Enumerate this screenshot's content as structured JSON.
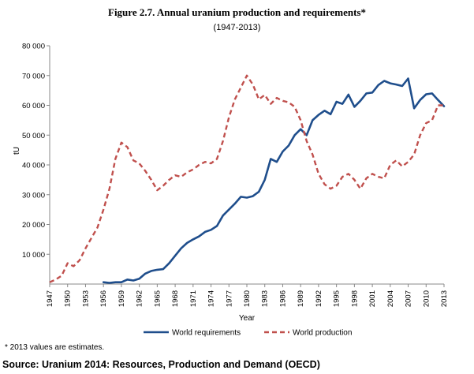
{
  "figure": {
    "title": "Figure 2.7. Annual uranium production and requirements*",
    "subtitle": "(1947-2013)",
    "footnote": "* 2013 values are estimates.",
    "source": "Source: Uranium 2014: Resources, Production and Demand (OECD)"
  },
  "chart_data": {
    "type": "line",
    "title": "Figure 2.7. Annual uranium production and requirements*",
    "subtitle": "(1947-2013)",
    "xlabel": "Year",
    "ylabel": "tU",
    "xlim": [
      1947,
      2013
    ],
    "ylim": [
      0,
      80000
    ],
    "x_ticks": [
      "1947",
      "1950",
      "1953",
      "1956",
      "1959",
      "1962",
      "1965",
      "1968",
      "1971",
      "1974",
      "1977",
      "1980",
      "1983",
      "1986",
      "1989",
      "1992",
      "1995",
      "1998",
      "2001",
      "2004",
      "2007",
      "2010",
      "2013"
    ],
    "y_ticks": [
      "10 000",
      "20 000",
      "30 000",
      "40 000",
      "50 000",
      "60 000",
      "70 000",
      "80 000"
    ],
    "grid": false,
    "legend_position": "bottom",
    "series": [
      {
        "name": "World requirements",
        "color": "#1f4e8c",
        "style": "solid",
        "x": [
          1956,
          1957,
          1958,
          1959,
          1960,
          1961,
          1962,
          1963,
          1964,
          1965,
          1966,
          1967,
          1968,
          1969,
          1970,
          1971,
          1972,
          1973,
          1974,
          1975,
          1976,
          1977,
          1978,
          1979,
          1980,
          1981,
          1982,
          1983,
          1984,
          1985,
          1986,
          1987,
          1988,
          1989,
          1990,
          1991,
          1992,
          1993,
          1994,
          1995,
          1996,
          1997,
          1998,
          1999,
          2000,
          2001,
          2002,
          2003,
          2004,
          2005,
          2006,
          2007,
          2008,
          2009,
          2010,
          2011,
          2012,
          2013
        ],
        "y": [
          600,
          400,
          600,
          600,
          1500,
          1200,
          1800,
          3500,
          4400,
          4800,
          5000,
          7000,
          9500,
          12000,
          13800,
          15000,
          16000,
          17500,
          18200,
          19500,
          23000,
          25000,
          27000,
          29300,
          29000,
          29500,
          31000,
          35000,
          42000,
          41000,
          44500,
          46500,
          50000,
          52000,
          50000,
          55000,
          56800,
          58200,
          57000,
          61200,
          60500,
          63600,
          59500,
          61500,
          64000,
          64300,
          66800,
          68200,
          67400,
          67000,
          66500,
          69000,
          59000,
          61800,
          63700,
          64000,
          61800,
          59700
        ]
      },
      {
        "name": "World production",
        "color": "#c0504d",
        "style": "dashed",
        "x": [
          1947,
          1948,
          1949,
          1950,
          1951,
          1952,
          1953,
          1954,
          1955,
          1956,
          1957,
          1958,
          1959,
          1960,
          1961,
          1962,
          1963,
          1964,
          1965,
          1966,
          1967,
          1968,
          1969,
          1970,
          1971,
          1972,
          1973,
          1974,
          1975,
          1976,
          1977,
          1978,
          1979,
          1980,
          1981,
          1982,
          1983,
          1984,
          1985,
          1986,
          1987,
          1988,
          1989,
          1990,
          1991,
          1992,
          1993,
          1994,
          1995,
          1996,
          1997,
          1998,
          1999,
          2000,
          2001,
          2002,
          2003,
          2004,
          2005,
          2006,
          2007,
          2008,
          2009,
          2010,
          2011,
          2012,
          2013
        ],
        "y": [
          600,
          1500,
          2800,
          7000,
          6000,
          8000,
          12000,
          15500,
          19000,
          25000,
          32000,
          42000,
          47500,
          46000,
          41500,
          40500,
          38000,
          35000,
          31500,
          33000,
          35000,
          36500,
          36000,
          37500,
          38500,
          40000,
          41000,
          40500,
          42000,
          48000,
          56000,
          62000,
          66000,
          70000,
          67000,
          62000,
          63500,
          60500,
          62500,
          61500,
          61000,
          59500,
          55000,
          48000,
          43500,
          37000,
          33500,
          32000,
          33000,
          36000,
          37000,
          35000,
          32000,
          35500,
          37000,
          36000,
          35500,
          40000,
          41500,
          39500,
          41000,
          43500,
          50000,
          54000,
          55000,
          60000,
          60000
        ]
      }
    ]
  }
}
